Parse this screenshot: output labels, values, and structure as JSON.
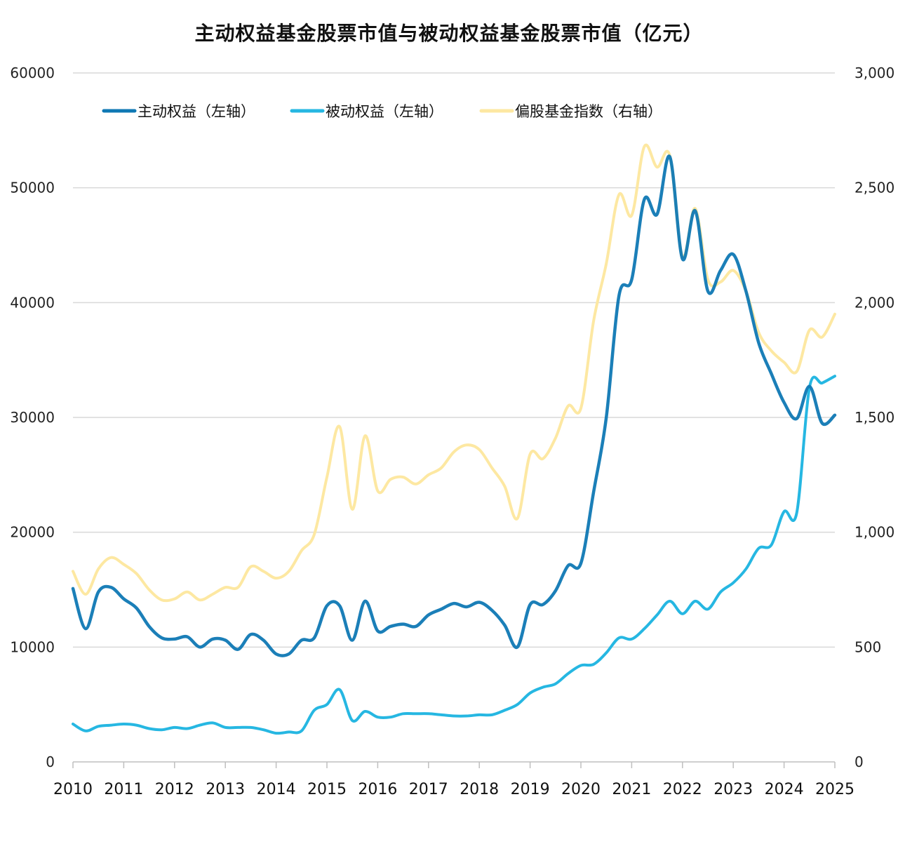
{
  "chart_data": {
    "type": "line",
    "title": "主动权益基金股票市值与被动权益基金股票市值（亿元）",
    "xlabel": "",
    "ylabel_left": "",
    "ylabel_right": "",
    "x_range": [
      2010,
      2025
    ],
    "x_ticks": [
      "2010",
      "2011",
      "2012",
      "2013",
      "2014",
      "2015",
      "2016",
      "2017",
      "2018",
      "2019",
      "2020",
      "2021",
      "2022",
      "2023",
      "2024",
      "2025"
    ],
    "y_left_range": [
      0,
      60000
    ],
    "y_left_ticks": [
      "0",
      "10000",
      "20000",
      "30000",
      "40000",
      "50000",
      "60000"
    ],
    "y_right_range": [
      0,
      3000
    ],
    "y_right_ticks": [
      "0",
      "500",
      "1,000",
      "1,500",
      "2,000",
      "2,500",
      "3,000"
    ],
    "grid": "horizontal",
    "legend_position": "top-left",
    "series": [
      {
        "name": "主动权益（左轴）",
        "axis": "left",
        "color": "#0f78b4",
        "points": [
          [
            2010.0,
            15100
          ],
          [
            2010.25,
            11600
          ],
          [
            2010.5,
            14800
          ],
          [
            2010.75,
            15200
          ],
          [
            2011.0,
            14200
          ],
          [
            2011.25,
            13400
          ],
          [
            2011.5,
            11800
          ],
          [
            2011.75,
            10800
          ],
          [
            2012.0,
            10700
          ],
          [
            2012.25,
            10900
          ],
          [
            2012.5,
            10000
          ],
          [
            2012.75,
            10700
          ],
          [
            2013.0,
            10600
          ],
          [
            2013.25,
            9800
          ],
          [
            2013.5,
            11100
          ],
          [
            2013.75,
            10600
          ],
          [
            2014.0,
            9400
          ],
          [
            2014.25,
            9400
          ],
          [
            2014.5,
            10600
          ],
          [
            2014.75,
            10800
          ],
          [
            2015.0,
            13600
          ],
          [
            2015.25,
            13600
          ],
          [
            2015.5,
            10600
          ],
          [
            2015.75,
            14000
          ],
          [
            2016.0,
            11400
          ],
          [
            2016.25,
            11800
          ],
          [
            2016.5,
            12000
          ],
          [
            2016.75,
            11800
          ],
          [
            2017.0,
            12800
          ],
          [
            2017.25,
            13300
          ],
          [
            2017.5,
            13800
          ],
          [
            2017.75,
            13500
          ],
          [
            2018.0,
            13900
          ],
          [
            2018.25,
            13200
          ],
          [
            2018.5,
            11900
          ],
          [
            2018.75,
            10000
          ],
          [
            2019.0,
            13700
          ],
          [
            2019.25,
            13700
          ],
          [
            2019.5,
            14900
          ],
          [
            2019.75,
            17100
          ],
          [
            2020.0,
            17300
          ],
          [
            2020.25,
            23500
          ],
          [
            2020.5,
            30000
          ],
          [
            2020.75,
            40600
          ],
          [
            2021.0,
            42000
          ],
          [
            2021.25,
            49000
          ],
          [
            2021.5,
            47700
          ],
          [
            2021.75,
            52700
          ],
          [
            2022.0,
            43800
          ],
          [
            2022.25,
            48000
          ],
          [
            2022.5,
            41000
          ],
          [
            2022.75,
            42800
          ],
          [
            2023.0,
            44200
          ],
          [
            2023.25,
            41000
          ],
          [
            2023.5,
            36500
          ],
          [
            2023.75,
            33800
          ],
          [
            2024.0,
            31300
          ],
          [
            2024.25,
            29900
          ],
          [
            2024.5,
            32700
          ],
          [
            2024.75,
            29500
          ],
          [
            2025.0,
            30200
          ]
        ]
      },
      {
        "name": "被动权益（左轴）",
        "axis": "left",
        "color": "#26b7e2",
        "points": [
          [
            2010.0,
            3300
          ],
          [
            2010.25,
            2700
          ],
          [
            2010.5,
            3100
          ],
          [
            2010.75,
            3200
          ],
          [
            2011.0,
            3300
          ],
          [
            2011.25,
            3200
          ],
          [
            2011.5,
            2900
          ],
          [
            2011.75,
            2800
          ],
          [
            2012.0,
            3000
          ],
          [
            2012.25,
            2900
          ],
          [
            2012.5,
            3200
          ],
          [
            2012.75,
            3400
          ],
          [
            2013.0,
            3000
          ],
          [
            2013.25,
            3000
          ],
          [
            2013.5,
            3000
          ],
          [
            2013.75,
            2800
          ],
          [
            2014.0,
            2500
          ],
          [
            2014.25,
            2600
          ],
          [
            2014.5,
            2700
          ],
          [
            2014.75,
            4500
          ],
          [
            2015.0,
            5000
          ],
          [
            2015.25,
            6300
          ],
          [
            2015.5,
            3600
          ],
          [
            2015.75,
            4400
          ],
          [
            2016.0,
            3900
          ],
          [
            2016.25,
            3900
          ],
          [
            2016.5,
            4200
          ],
          [
            2016.75,
            4200
          ],
          [
            2017.0,
            4200
          ],
          [
            2017.25,
            4100
          ],
          [
            2017.5,
            4000
          ],
          [
            2017.75,
            4000
          ],
          [
            2018.0,
            4100
          ],
          [
            2018.25,
            4100
          ],
          [
            2018.5,
            4500
          ],
          [
            2018.75,
            5000
          ],
          [
            2019.0,
            6000
          ],
          [
            2019.25,
            6500
          ],
          [
            2019.5,
            6800
          ],
          [
            2019.75,
            7700
          ],
          [
            2020.0,
            8400
          ],
          [
            2020.25,
            8500
          ],
          [
            2020.5,
            9500
          ],
          [
            2020.75,
            10800
          ],
          [
            2021.0,
            10700
          ],
          [
            2021.25,
            11600
          ],
          [
            2021.5,
            12800
          ],
          [
            2021.75,
            14000
          ],
          [
            2022.0,
            12900
          ],
          [
            2022.25,
            14000
          ],
          [
            2022.5,
            13300
          ],
          [
            2022.75,
            14800
          ],
          [
            2023.0,
            15600
          ],
          [
            2023.25,
            16800
          ],
          [
            2023.5,
            18600
          ],
          [
            2023.75,
            18900
          ],
          [
            2024.0,
            21800
          ],
          [
            2024.25,
            21700
          ],
          [
            2024.5,
            32600
          ],
          [
            2024.75,
            33000
          ],
          [
            2025.0,
            33600
          ]
        ]
      },
      {
        "name": "偏股基金指数（右轴）",
        "axis": "right",
        "color": "#fde8a2",
        "points": [
          [
            2010.0,
            830
          ],
          [
            2010.25,
            730
          ],
          [
            2010.5,
            840
          ],
          [
            2010.75,
            890
          ],
          [
            2011.0,
            860
          ],
          [
            2011.25,
            820
          ],
          [
            2011.5,
            750
          ],
          [
            2011.75,
            705
          ],
          [
            2012.0,
            710
          ],
          [
            2012.25,
            740
          ],
          [
            2012.5,
            705
          ],
          [
            2012.75,
            730
          ],
          [
            2013.0,
            760
          ],
          [
            2013.25,
            760
          ],
          [
            2013.5,
            850
          ],
          [
            2013.75,
            830
          ],
          [
            2014.0,
            800
          ],
          [
            2014.25,
            830
          ],
          [
            2014.5,
            920
          ],
          [
            2014.75,
            990
          ],
          [
            2015.0,
            1240
          ],
          [
            2015.25,
            1460
          ],
          [
            2015.5,
            1100
          ],
          [
            2015.75,
            1420
          ],
          [
            2016.0,
            1180
          ],
          [
            2016.25,
            1230
          ],
          [
            2016.5,
            1240
          ],
          [
            2016.75,
            1210
          ],
          [
            2017.0,
            1250
          ],
          [
            2017.25,
            1280
          ],
          [
            2017.5,
            1350
          ],
          [
            2017.75,
            1380
          ],
          [
            2018.0,
            1360
          ],
          [
            2018.25,
            1280
          ],
          [
            2018.5,
            1200
          ],
          [
            2018.75,
            1060
          ],
          [
            2019.0,
            1340
          ],
          [
            2019.25,
            1320
          ],
          [
            2019.5,
            1410
          ],
          [
            2019.75,
            1550
          ],
          [
            2020.0,
            1540
          ],
          [
            2020.25,
            1920
          ],
          [
            2020.5,
            2170
          ],
          [
            2020.75,
            2470
          ],
          [
            2021.0,
            2380
          ],
          [
            2021.25,
            2680
          ],
          [
            2021.5,
            2590
          ],
          [
            2021.75,
            2640
          ],
          [
            2022.0,
            2200
          ],
          [
            2022.25,
            2410
          ],
          [
            2022.5,
            2100
          ],
          [
            2022.75,
            2090
          ],
          [
            2023.0,
            2140
          ],
          [
            2023.25,
            2050
          ],
          [
            2023.5,
            1870
          ],
          [
            2023.75,
            1790
          ],
          [
            2024.0,
            1740
          ],
          [
            2024.25,
            1700
          ],
          [
            2024.5,
            1880
          ],
          [
            2024.75,
            1850
          ],
          [
            2025.0,
            1950
          ]
        ]
      }
    ]
  }
}
